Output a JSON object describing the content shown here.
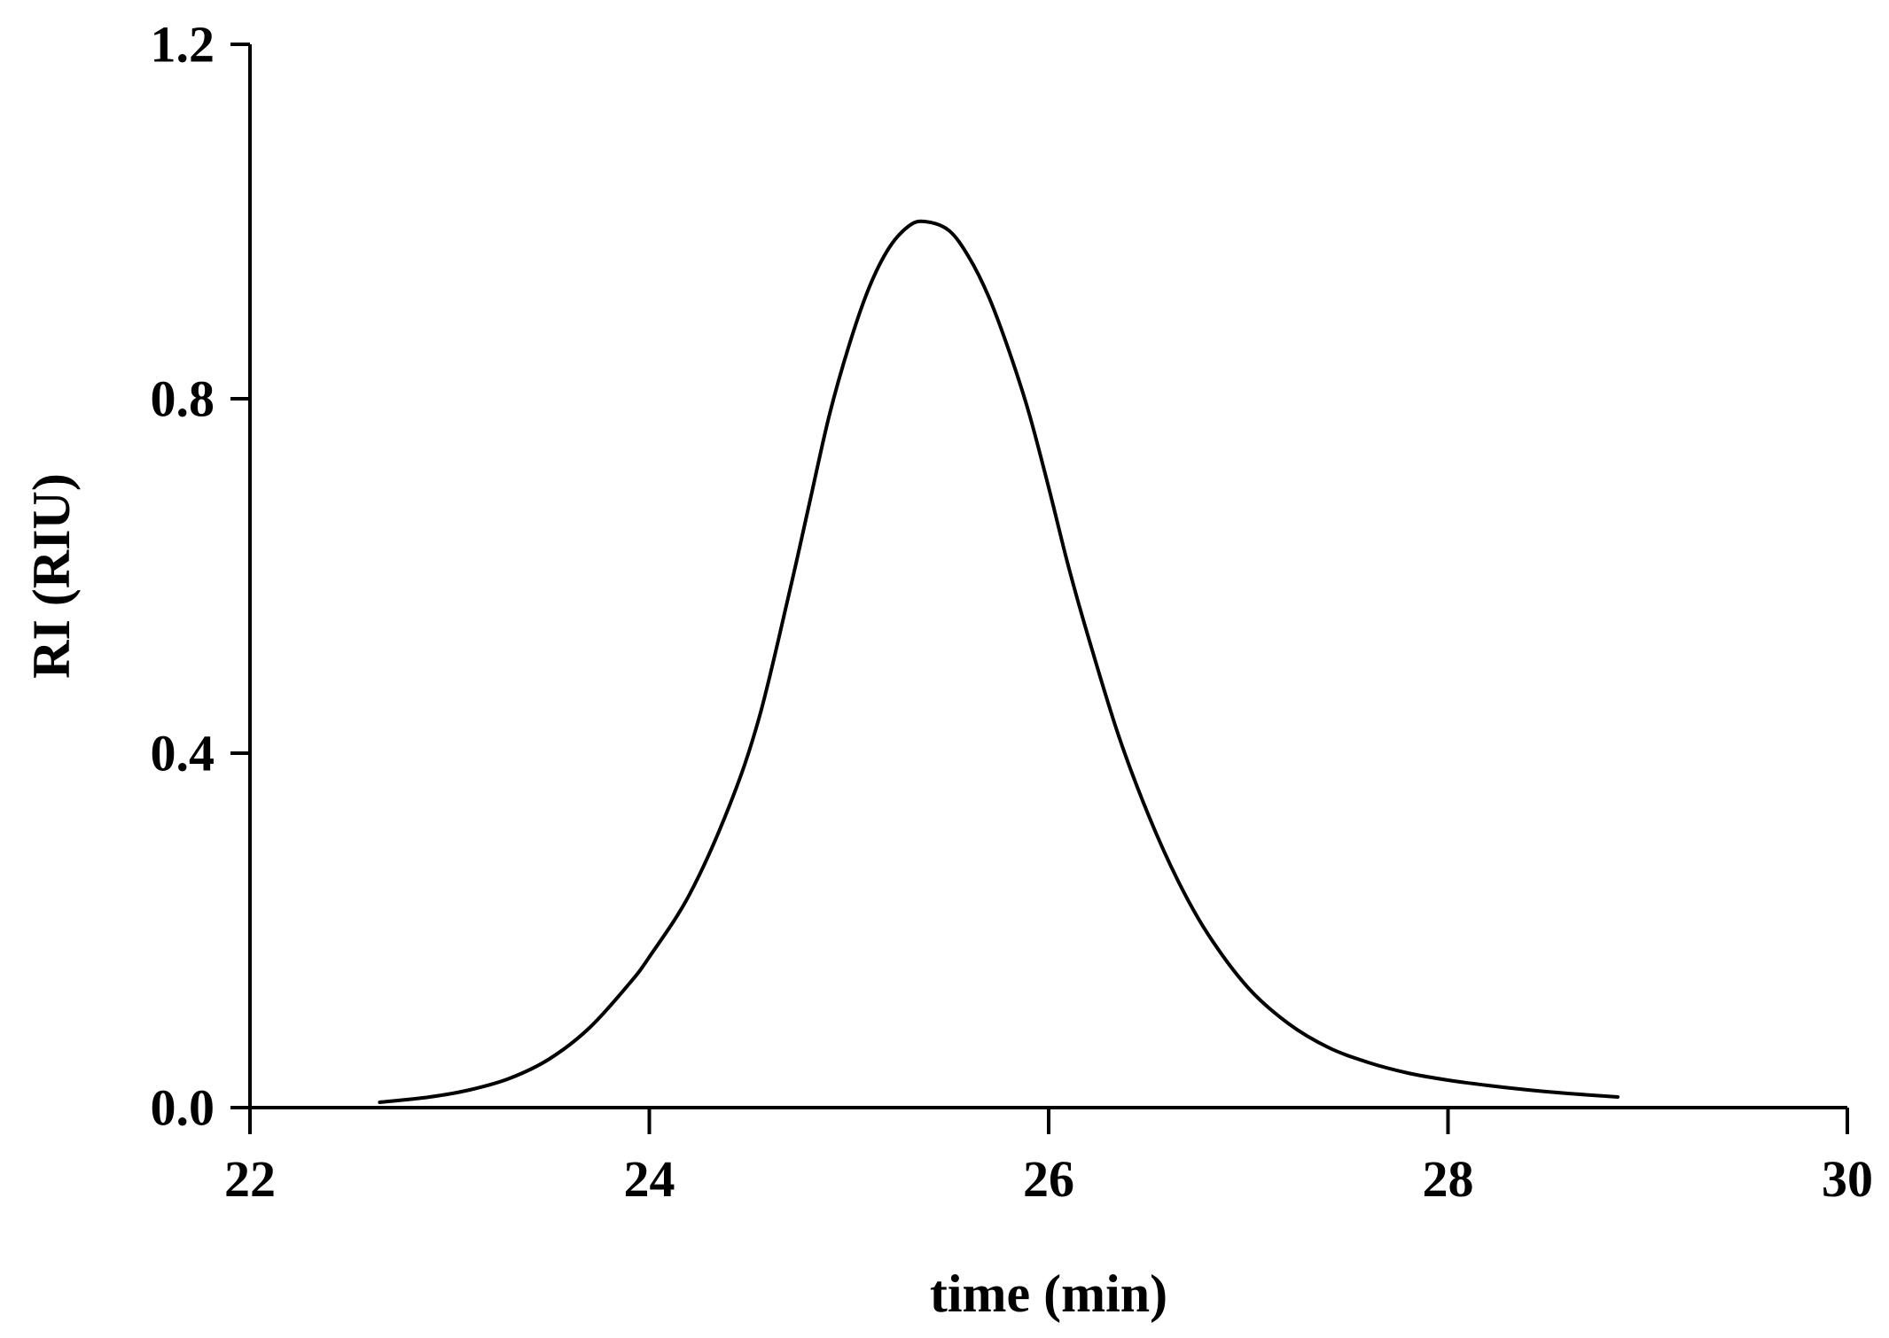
{
  "chart_data": {
    "type": "line",
    "title": "",
    "xlabel": "time (min)",
    "ylabel": "RI (RIU)",
    "xlim": [
      22,
      30
    ],
    "ylim": [
      0.0,
      1.2
    ],
    "xticks": [
      22,
      24,
      26,
      28,
      30
    ],
    "xtick_labels": [
      "22",
      "24",
      "26",
      "28",
      "30"
    ],
    "yticks": [
      0.0,
      0.4,
      0.8,
      1.2
    ],
    "ytick_labels": [
      "0.0",
      "0.4",
      "0.8",
      "1.2"
    ],
    "grid": false,
    "legend": "none",
    "line_color": "#000000",
    "series": [
      {
        "x": [
          22.65,
          22.9,
          23.1,
          23.3,
          23.5,
          23.7,
          23.9,
          24.0,
          24.2,
          24.4,
          24.55,
          24.7,
          24.8,
          24.9,
          25.0,
          25.1,
          25.2,
          25.3,
          25.38,
          25.5,
          25.6,
          25.7,
          25.8,
          25.9,
          26.0,
          26.1,
          26.2,
          26.35,
          26.5,
          26.65,
          26.8,
          27.0,
          27.2,
          27.4,
          27.6,
          27.8,
          28.0,
          28.2,
          28.4,
          28.6,
          28.85
        ],
        "y": [
          0.006,
          0.012,
          0.02,
          0.033,
          0.055,
          0.09,
          0.14,
          0.17,
          0.24,
          0.34,
          0.44,
          0.58,
          0.68,
          0.78,
          0.86,
          0.925,
          0.97,
          0.995,
          1.0,
          0.99,
          0.96,
          0.915,
          0.855,
          0.785,
          0.7,
          0.61,
          0.53,
          0.42,
          0.33,
          0.255,
          0.195,
          0.135,
          0.095,
          0.068,
          0.051,
          0.039,
          0.031,
          0.025,
          0.02,
          0.016,
          0.012
        ]
      }
    ]
  }
}
